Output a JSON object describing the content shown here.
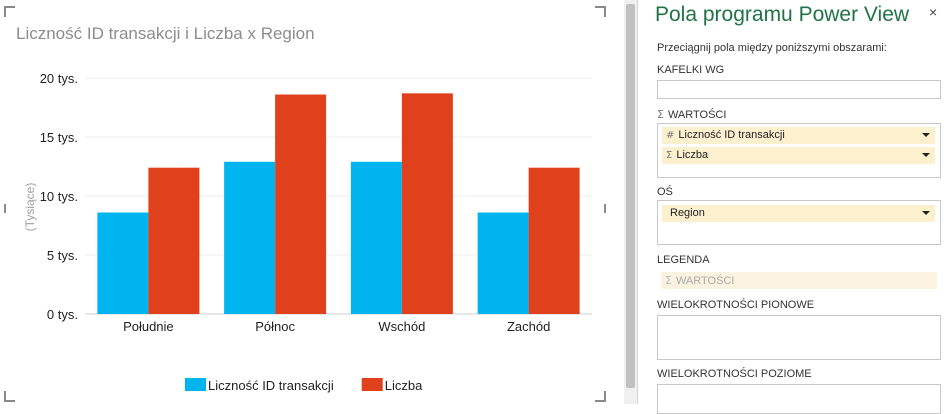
{
  "chart": {
    "title": "Liczność ID transakcji i Liczba x Region",
    "y_axis_title": "(Tysiące)"
  },
  "chart_data": {
    "type": "bar",
    "title": "Liczność ID transakcji i Liczba x Region",
    "categories": [
      "Południe",
      "Północ",
      "Wschód",
      "Zachód"
    ],
    "series": [
      {
        "name": "Liczność ID transakcji",
        "values": [
          8600,
          12900,
          12900,
          8600
        ],
        "color": "#00b4ef"
      },
      {
        "name": "Liczba",
        "values": [
          12400,
          18600,
          18700,
          12400
        ],
        "color": "#e0401c"
      }
    ],
    "ylabel": "(Tysiące)",
    "ylim": [
      0,
      20000
    ],
    "yticks": [
      {
        "value": 0,
        "label": "0 tys."
      },
      {
        "value": 5000,
        "label": "5 tys."
      },
      {
        "value": 10000,
        "label": "10 tys."
      },
      {
        "value": 15000,
        "label": "15 tys."
      },
      {
        "value": 20000,
        "label": "20 tys."
      }
    ],
    "grid": true,
    "legend_position": "bottom"
  },
  "pane": {
    "title": "Pola programu Power View",
    "close_icon": "×",
    "instructions": "Przeciągnij pola między poniższymi obszarami:",
    "sections": {
      "tiles": {
        "label": "KAFELKI WG"
      },
      "values": {
        "label": "WARTOŚCI",
        "fields": [
          {
            "icon": "#",
            "label": "Liczność ID transakcji"
          },
          {
            "icon": "Σ",
            "label": "Liczba"
          }
        ]
      },
      "axis": {
        "label": "OŚ",
        "fields": [
          {
            "label": "Region"
          }
        ]
      },
      "legend": {
        "label": "LEGENDA",
        "placeholder": "WARTOŚCI"
      },
      "vertical_multiples": {
        "label": "WIELOKROTNOŚCI PIONOWE"
      },
      "horizontal_multiples": {
        "label": "WIELOKROTNOŚCI POZIOME"
      }
    },
    "sigma_icon": "Σ"
  }
}
